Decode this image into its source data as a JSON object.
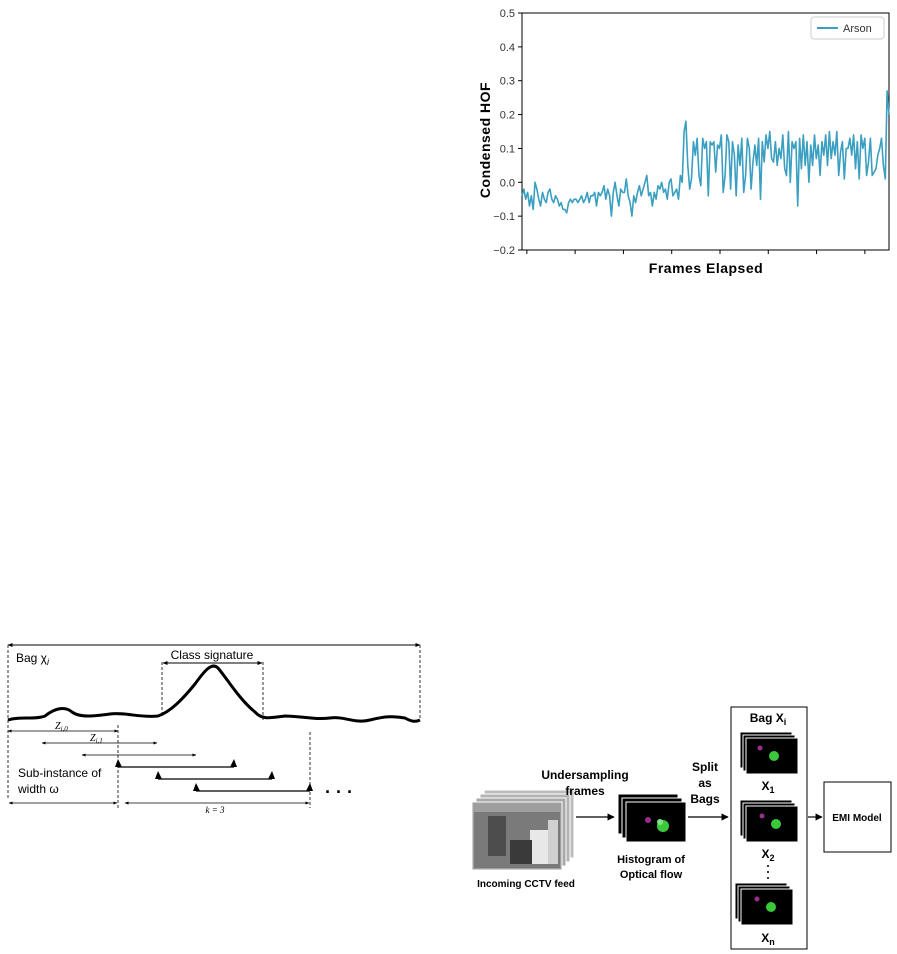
{
  "chart_data": {
    "type": "line",
    "title": "",
    "xlabel": "Frames Elapsed",
    "ylabel": "Condensed HOF",
    "ylim": [
      -0.2,
      0.5
    ],
    "yticks": [
      "0.5",
      "0.4",
      "0.3",
      "0.2",
      "0.1",
      "0.0",
      "−0.1",
      "−0.2"
    ],
    "legend": "top-right",
    "grid": false,
    "series": [
      {
        "name": "Arson",
        "color": "#3a9fc0",
        "values": [
          -0.04,
          -0.02,
          -0.05,
          -0.03,
          -0.07,
          -0.04,
          -0.08,
          0.0,
          -0.02,
          -0.05,
          -0.07,
          -0.03,
          -0.05,
          -0.06,
          -0.03,
          -0.02,
          -0.05,
          -0.06,
          -0.04,
          -0.05,
          -0.07,
          -0.06,
          -0.08,
          -0.08,
          -0.09,
          -0.06,
          -0.05,
          -0.06,
          -0.05,
          -0.05,
          -0.06,
          -0.05,
          -0.04,
          -0.06,
          -0.05,
          -0.03,
          -0.06,
          -0.04,
          -0.04,
          -0.03,
          -0.07,
          -0.03,
          -0.04,
          -0.03,
          -0.01,
          -0.05,
          -0.02,
          -0.04,
          -0.1,
          -0.03,
          0.0,
          -0.04,
          -0.07,
          -0.02,
          -0.03,
          -0.03,
          0.01,
          -0.04,
          -0.06,
          -0.1,
          -0.04,
          -0.06,
          -0.03,
          -0.01,
          -0.04,
          -0.02,
          0.0,
          0.02,
          -0.04,
          -0.03,
          -0.07,
          -0.03,
          -0.05,
          -0.01,
          -0.02,
          0.0,
          -0.03,
          -0.02,
          -0.05,
          0.0,
          0.01,
          -0.04,
          -0.03,
          -0.02,
          -0.05,
          0.02,
          0.0,
          0.15,
          0.18,
          0.05,
          -0.02,
          0.01,
          0.12,
          0.08,
          0.13,
          0.02,
          -0.01,
          0.13,
          0.1,
          0.12,
          -0.04,
          0.12,
          0.11,
          0.12,
          0.03,
          0.11,
          0.1,
          0.14,
          -0.03,
          0.02,
          0.14,
          0.12,
          -0.02,
          0.12,
          0.08,
          -0.04,
          0.11,
          0.05,
          0.13,
          -0.03,
          0.02,
          0.13,
          0.1,
          -0.02,
          0.06,
          0.11,
          0.05,
          0.13,
          -0.05,
          0.12,
          0.06,
          0.14,
          0.1,
          0.15,
          0.07,
          0.06,
          0.12,
          0.05,
          0.1,
          0.07,
          0.14,
          0.04,
          0.02,
          0.15,
          0.0,
          0.12,
          0.1,
          0.12,
          -0.07,
          0.13,
          0.04,
          0.14,
          0.05,
          0.12,
          0.0,
          0.11,
          0.05,
          0.14,
          0.07,
          0.11,
          0.02,
          0.12,
          0.08,
          0.14,
          0.05,
          0.15,
          0.07,
          0.12,
          0.08,
          0.15,
          0.02,
          0.09,
          0.12,
          0.01,
          0.1,
          0.1,
          0.13,
          0.08,
          0.14,
          0.04,
          0.12,
          0.01,
          0.14,
          0.1,
          0.13,
          0.02,
          0.06,
          0.13,
          0.02,
          0.03,
          0.04,
          0.08,
          0.1,
          0.13,
          0.05,
          0.01,
          0.27,
          0.2
        ]
      }
    ]
  },
  "bag_diagram": {
    "bag_label": "Bag χ",
    "bag_subscript": "i",
    "class_signature_label": "Class signature",
    "z_label_0": "Z",
    "z_label_0_sub": "i,0",
    "z_label_1": "Z",
    "z_label_1_sub": "i,1",
    "sub_instance_label_line1": "Sub-instance of",
    "sub_instance_label_line2": "width ω",
    "k_label": "k = 3",
    "ellipsis": "· · ·"
  },
  "pipeline": {
    "input_label": "Incoming CCTV feed",
    "undersampling_line1": "Undersampling",
    "undersampling_line2": "frames",
    "hof_line1": "Histogram  of",
    "hof_line2": "Optical flow",
    "split_line1": "Split",
    "split_line2": "as",
    "split_line3": "Bags",
    "bag_title": "Bag X",
    "bag_title_sub": "i",
    "x1": "X",
    "x1_sub": "1",
    "x2": "X",
    "x2_sub": "2",
    "xn": "X",
    "xn_sub": "n",
    "dots": "·\n·\n·",
    "model_label": "EMI Model"
  }
}
